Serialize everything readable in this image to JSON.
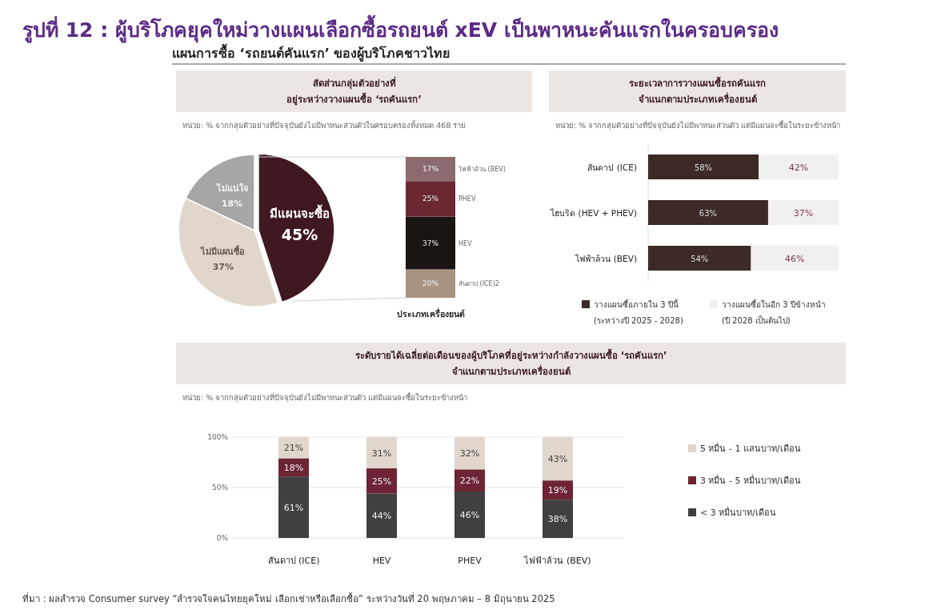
{
  "chart_data": [
    {
      "type": "other",
      "title": "รูปที่ 12 : ผู้บริโภคยุคใหม่วางแผนเลือกซื้อรถยนต์ xEV เป็นพาหนะคันแรกในครอบครอง",
      "subtitle": "แผนการซื้อ ‘รถยนต์คันแรก’ ของผู้บริโภคชาวไทย",
      "annotations": [
        "ที่มา : ผลสำรวจ Consumer survey “สำรวจใจคนไทยยุคใหม่ เลือกเช่าหรือเลือกซื้อ” ระหว่างวันที่ 20 พฤษภาคม – 8 มิถุนายน 2025"
      ]
    },
    {
      "type": "pie",
      "title": "สัดส่วนกลุ่มตัวอย่างที่\nอยู่ระหว่างวางแผนซื้อ ‘รถคันแรก’",
      "subtitle": "หน่วย: % จากกลุ่มตัวอย่างที่ปัจจุบันยังไม่มีพาหนะส่วนตัวในครอบครองทั้งหมด 468 ราย",
      "categories": [
        "มีแผนจะซื้อ",
        "ไม่มีแผนซื้อ",
        "ไม่แน่ใจ"
      ],
      "values": [
        45,
        37,
        18
      ],
      "value_labels": [
        "45%",
        "37%",
        "18%"
      ],
      "colors": [
        "#3f1820",
        "#e0d6cc",
        "#a6a6a6"
      ]
    },
    {
      "type": "bar",
      "stacked": true,
      "xlabel": "ประเภทเครื่องยนต์",
      "categories": [
        null
      ],
      "series": [
        {
          "name": "สันดาป (ICE)2",
          "color": "#a89282",
          "values": [
            20
          ],
          "value_labels": [
            "20%"
          ]
        },
        {
          "name": "HEV",
          "color": "#1a1513",
          "values": [
            37
          ],
          "value_labels": [
            "37%"
          ]
        },
        {
          "name": "PHEV",
          "color": "#6b2833",
          "values": [
            25
          ],
          "value_labels": [
            "25%"
          ]
        },
        {
          "name": "ไฟฟ้าล้วน (BEV)",
          "color": "#8c6b6e",
          "values": [
            17
          ],
          "value_labels": [
            "17%"
          ]
        }
      ]
    },
    {
      "type": "bar",
      "stacked": true,
      "orientation": "horizontal",
      "legend": "bottom",
      "title": "ระยะเวลาการวางแผนซื้อรถคันแรก\nจำแนกตามประเภทเครื่องยนต์",
      "subtitle": "หน่วย: % จากกลุ่มตัวอย่างที่ปัจจุบันยังไม่มีพาหนะส่วนตัว แต่มีแผนจะซื้อในระยะข้างหน้า",
      "categories": [
        "สันดาป (ICE)",
        "ไฮบริด (HEV + PHEV)",
        "ไฟฟ้าล้วน (BEV)"
      ],
      "series": [
        {
          "name": "วางแผนซื้อภายใน 3 ปีนี้\n(ระหว่างปี 2025 - 2028)",
          "color": "#3b2a26",
          "values": [
            58,
            63,
            54
          ],
          "value_labels": [
            "58%",
            "63%",
            "54%"
          ]
        },
        {
          "name": "วางแผนซื้อในอีก 3 ปีข้างหน้า\n(ปี 2028 เป็นต้นไป)",
          "color": "#f1efef",
          "values": [
            42,
            37,
            46
          ],
          "value_labels": [
            "42%",
            "37%",
            "46%"
          ]
        }
      ]
    },
    {
      "type": "bar",
      "stacked": true,
      "legend": "right",
      "grid": "y",
      "title": "ระดับรายได้เฉลี่ยต่อเดือนของผู้บริโภคที่อยู่ระหว่างกำลังวางแผนซื้อ ‘รถคันแรก’\nจำแนกตามประเภทเครื่องยนต์",
      "subtitle": "หน่วย: % จากกลุ่มตัวอย่างที่ปัจจุบันยังไม่มีพาหนะส่วนตัว แต่มีแผนจะซื้อในระยะข้างหน้า",
      "categories": [
        "สันดาป (ICE)",
        "HEV",
        "PHEV",
        "ไฟฟ้าล้วน (BEV)"
      ],
      "ylim": [
        0,
        100
      ],
      "yticks": [
        {
          "value": 0,
          "label": "0%"
        },
        {
          "value": 50,
          "label": "50%"
        },
        {
          "value": 100,
          "label": "100%"
        }
      ],
      "series": [
        {
          "name": "< 3 หมื่นบาท/เดือน",
          "color": "#404040",
          "values": [
            61,
            44,
            46,
            38
          ],
          "value_labels": [
            "61%",
            "44%",
            "46%",
            "38%"
          ]
        },
        {
          "name": "3 หมื่น - 5 หมื่นบาท/เดือน",
          "color": "#6e2434",
          "values": [
            18,
            25,
            22,
            19
          ],
          "value_labels": [
            "18%",
            "25%",
            "22%",
            "19%"
          ]
        },
        {
          "name": "5 หมื่น - 1 แสนบาท/เดือน",
          "color": "#e0d6cc",
          "values": [
            21,
            31,
            32,
            43
          ],
          "value_labels": [
            "21%",
            "31%",
            "32%",
            "43%"
          ]
        }
      ]
    }
  ]
}
